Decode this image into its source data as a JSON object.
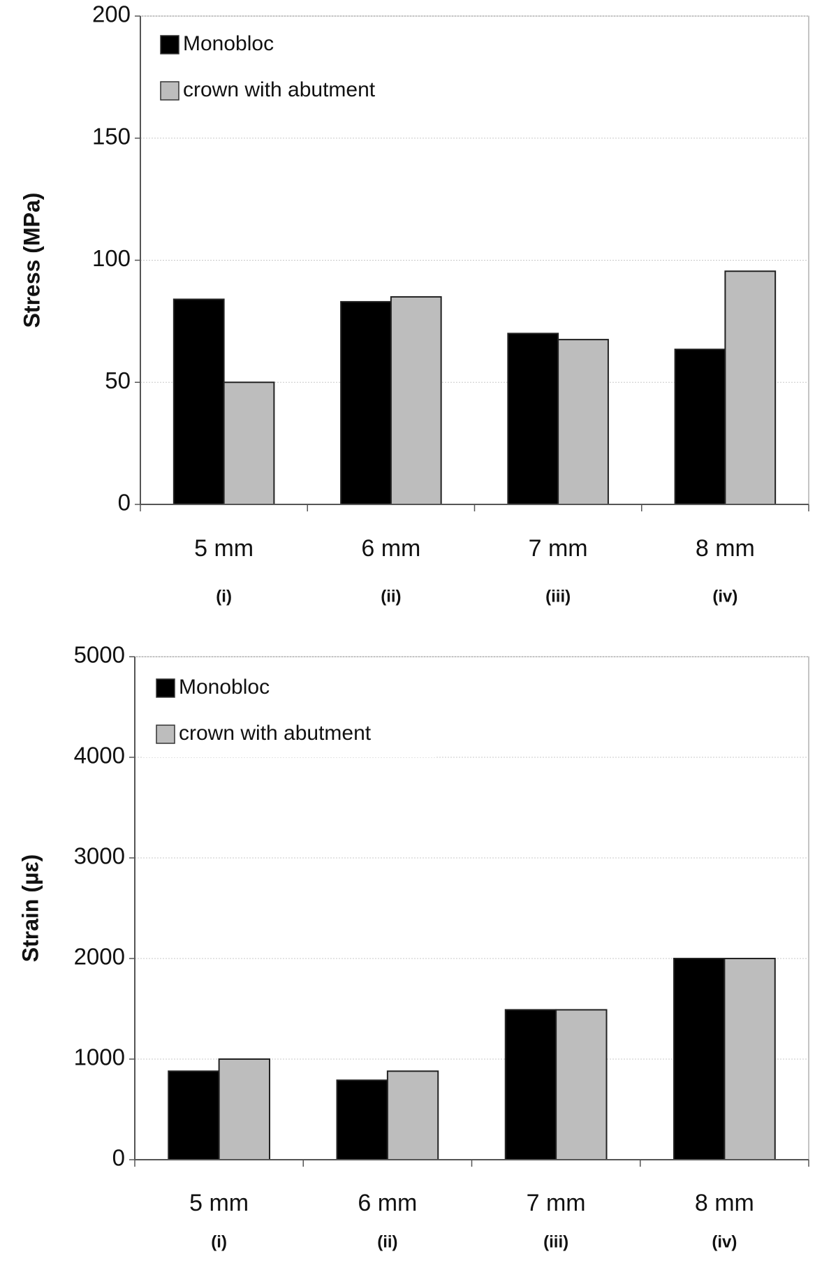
{
  "chart_data": [
    {
      "type": "bar",
      "y_label": "Stress (MPa)",
      "categories": [
        "5 mm",
        "6 mm",
        "7 mm",
        "8 mm"
      ],
      "subcategories": [
        "(i)",
        "(ii)",
        "(iii)",
        "(iv)"
      ],
      "series": [
        {
          "name": "Monobloc",
          "color": "#000000",
          "values": [
            84,
            83,
            70,
            63.5
          ]
        },
        {
          "name": "crown with abutment",
          "color": "#bdbdbd",
          "values": [
            50,
            85,
            67.5,
            95.5
          ]
        }
      ],
      "ylim": [
        0,
        200
      ],
      "yticks": [
        0,
        50,
        100,
        150,
        200
      ],
      "grid": true,
      "legend": "top-left"
    },
    {
      "type": "bar",
      "y_label": "Strain (µε)",
      "categories": [
        "5 mm",
        "6 mm",
        "7 mm",
        "8 mm"
      ],
      "subcategories": [
        "(i)",
        "(ii)",
        "(iii)",
        "(iv)"
      ],
      "series": [
        {
          "name": "Monobloc",
          "color": "#000000",
          "values": [
            880,
            790,
            1490,
            2000
          ]
        },
        {
          "name": "crown with abutment",
          "color": "#bdbdbd",
          "values": [
            1000,
            880,
            1490,
            2000
          ]
        }
      ],
      "ylim": [
        0,
        5000
      ],
      "yticks": [
        0,
        1000,
        2000,
        3000,
        4000,
        5000
      ],
      "grid": true,
      "legend": "top-left"
    }
  ]
}
